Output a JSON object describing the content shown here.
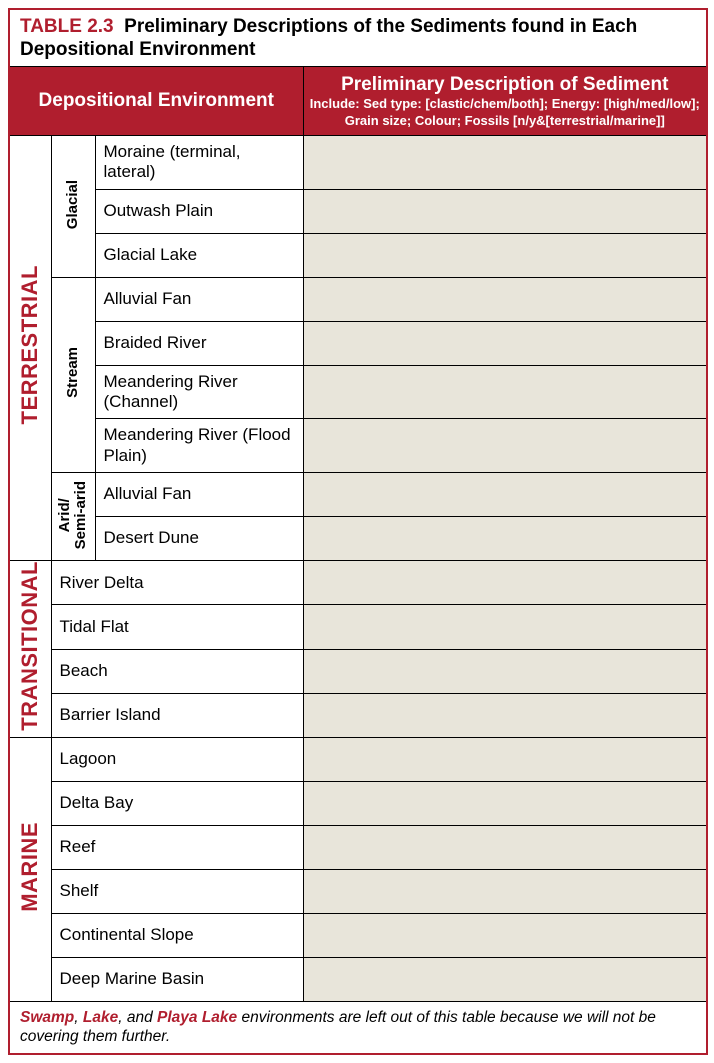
{
  "colors": {
    "accent": "#b01e2e",
    "desc_bg": "#e8e5da",
    "border": "#000000",
    "bg": "#ffffff"
  },
  "title": {
    "label": "TABLE 2.3",
    "text": "Preliminary Descriptions of the Sediments found in Each Depositional Environment"
  },
  "headers": {
    "left": "Depositional Environment",
    "right_big": "Preliminary Description of Sediment",
    "right_small_lead": "Include",
    "right_small_rest": ": Sed type: [clastic/chem/both]; Energy: [high/med/low]; Grain size; Colour; Fossils [n/y&[terrestrial/marine]]"
  },
  "cats": {
    "terrestrial": "TERRESTRIAL",
    "transitional": "TRANSITIONAL",
    "marine": "MARINE"
  },
  "subs": {
    "glacial": "Glacial",
    "stream": "Stream",
    "arid_l1": "Arid/",
    "arid_l2": "Semi-arid"
  },
  "env": {
    "moraine": "Moraine (terminal, lateral)",
    "outwash": "Outwash Plain",
    "glacial_lake": "Glacial Lake",
    "alluvial_fan1": "Alluvial Fan",
    "braided": "Braided River",
    "meander_ch": "Meandering River (Channel)",
    "meander_fp": "Meandering River (Flood Plain)",
    "alluvial_fan2": "Alluvial Fan",
    "desert_dune": "Desert Dune",
    "river_delta": "River Delta",
    "tidal_flat": "Tidal Flat",
    "beach": "Beach",
    "barrier": "Barrier Island",
    "lagoon": "Lagoon",
    "delta_bay": "Delta Bay",
    "reef": "Reef",
    "shelf": "Shelf",
    "slope": "Continental Slope",
    "deep": "Deep Marine Basin"
  },
  "footer": {
    "w1": "Swamp",
    "s1": ", ",
    "w2": "Lake",
    "s2": ", and ",
    "w3": "Playa Lake",
    "rest": " environments are left out of this table because we will not be covering them further."
  }
}
